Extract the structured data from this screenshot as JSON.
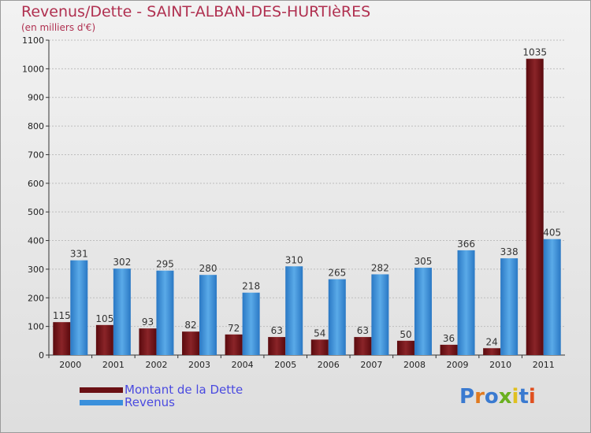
{
  "title": "Revenus/Dette - SAINT-ALBAN-DES-HURTIèRES",
  "subtitle": "(en milliers d'€)",
  "legend": {
    "dette_label": "Montant de la Dette",
    "revenus_label": "Revenus"
  },
  "logo": {
    "text": "Proxiti"
  },
  "colors": {
    "dette": "#7a1418",
    "revenus": "#3a90dc",
    "title": "#b03050",
    "legend_text": "#4a4ae0"
  },
  "chart_data": {
    "type": "bar",
    "title": "Revenus/Dette - SAINT-ALBAN-DES-HURTIèRES",
    "ylabel": "(en milliers d'€)",
    "xlabel": "",
    "ylim": [
      0,
      1100
    ],
    "yticks": [
      0,
      100,
      200,
      300,
      400,
      500,
      600,
      700,
      800,
      900,
      1000,
      1100
    ],
    "categories": [
      "2000",
      "2001",
      "2002",
      "2003",
      "2004",
      "2005",
      "2006",
      "2007",
      "2008",
      "2009",
      "2010",
      "2011"
    ],
    "series": [
      {
        "name": "Montant de la Dette",
        "values": [
          115,
          105,
          93,
          82,
          72,
          63,
          54,
          63,
          50,
          36,
          24,
          1035
        ]
      },
      {
        "name": "Revenus",
        "values": [
          331,
          302,
          295,
          280,
          218,
          310,
          265,
          282,
          305,
          366,
          338,
          405
        ]
      }
    ]
  }
}
